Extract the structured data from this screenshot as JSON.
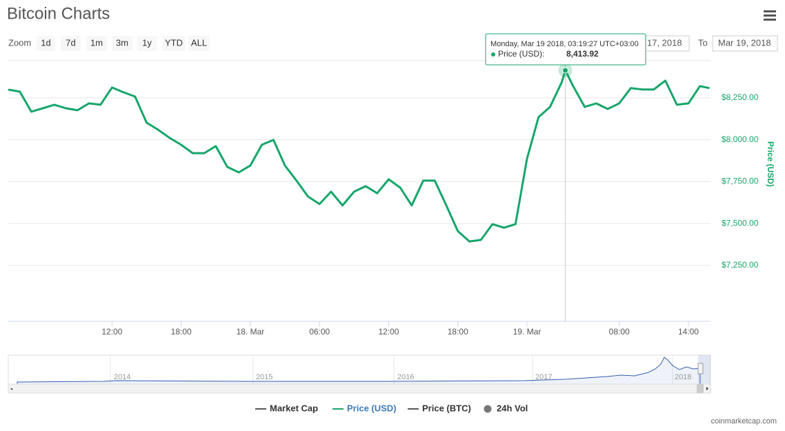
{
  "ui": {
    "title": "Bitcoin Charts",
    "zoom_label": "Zoom",
    "zoom_buttons": [
      "1d",
      "7d",
      "1m",
      "3m",
      "1y",
      "YTD",
      "ALL"
    ],
    "from_value": "17, 2018",
    "to_label": "To",
    "to_value": "Mar 19, 2018",
    "legend_others": [
      {
        "name": "Market Cap",
        "color": "#555555"
      },
      {
        "name": "Price (BTC)",
        "color": "#555555"
      },
      {
        "name": "24h Vol",
        "color": "#777777"
      }
    ],
    "footer": "coinmarketcap.com",
    "navigator_labels": [
      "2014",
      "2015",
      "2016",
      "2017",
      "2018"
    ]
  },
  "chart_data": {
    "type": "line",
    "ylabel": "Price (USD)",
    "x": [
      "2018-03-17T03:00",
      "2018-03-17T04:00",
      "2018-03-17T05:00",
      "2018-03-17T06:00",
      "2018-03-17T07:00",
      "2018-03-17T08:00",
      "2018-03-17T09:00",
      "2018-03-17T10:00",
      "2018-03-17T11:00",
      "2018-03-17T12:00",
      "2018-03-17T13:00",
      "2018-03-17T14:00",
      "2018-03-17T15:00",
      "2018-03-17T16:00",
      "2018-03-17T17:00",
      "2018-03-17T18:00",
      "2018-03-17T19:00",
      "2018-03-17T20:00",
      "2018-03-17T21:00",
      "2018-03-17T22:00",
      "2018-03-17T23:00",
      "2018-03-18T00:00",
      "2018-03-18T01:00",
      "2018-03-18T02:00",
      "2018-03-18T03:00",
      "2018-03-18T04:00",
      "2018-03-18T05:00",
      "2018-03-18T06:00",
      "2018-03-18T07:00",
      "2018-03-18T08:00",
      "2018-03-18T09:00",
      "2018-03-18T10:00",
      "2018-03-18T11:00",
      "2018-03-18T12:00",
      "2018-03-18T13:00",
      "2018-03-18T14:00",
      "2018-03-18T15:00",
      "2018-03-18T16:00",
      "2018-03-18T17:00",
      "2018-03-18T18:00",
      "2018-03-18T19:00",
      "2018-03-18T20:00",
      "2018-03-18T21:00",
      "2018-03-18T22:00",
      "2018-03-18T23:00",
      "2018-03-19T00:00",
      "2018-03-19T01:00",
      "2018-03-19T02:00",
      "2018-03-19T03:00",
      "2018-03-19T03:19:27",
      "2018-03-19T04:00",
      "2018-03-19T05:00",
      "2018-03-19T06:00",
      "2018-03-19T07:00",
      "2018-03-19T08:00",
      "2018-03-19T09:00",
      "2018-03-19T10:00",
      "2018-03-19T11:00",
      "2018-03-19T12:00",
      "2018-03-19T13:00",
      "2018-03-19T14:00",
      "2018-03-19T15:00",
      "2018-03-19T15:50"
    ],
    "series": [
      {
        "name": "Price (USD)",
        "color": "#16a56a",
        "values": [
          8299,
          8287,
          8168,
          8188,
          8209,
          8188,
          8176,
          8217,
          8209,
          8312,
          8283,
          8258,
          8102,
          8060,
          8011,
          7970,
          7920,
          7920,
          7962,
          7838,
          7805,
          7846,
          7970,
          7999,
          7846,
          7756,
          7661,
          7616,
          7690,
          7608,
          7690,
          7723,
          7681,
          7764,
          7714,
          7608,
          7756,
          7756,
          7608,
          7455,
          7393,
          7402,
          7496,
          7475,
          7496,
          7887,
          8135,
          8196,
          8341,
          8413.92,
          8320,
          8196,
          8217,
          8184,
          8217,
          8308,
          8300,
          8300,
          8353,
          8209,
          8217,
          8320,
          8308
        ]
      }
    ],
    "xlim": [
      "2018-03-17T03:00",
      "2018-03-19T15:55"
    ],
    "xticks": [
      {
        "value": "2018-03-17T12:00",
        "label": "12:00"
      },
      {
        "value": "2018-03-17T18:00",
        "label": "18:00"
      },
      {
        "value": "2018-03-18T00:00",
        "label": "18. Mar"
      },
      {
        "value": "2018-03-18T06:00",
        "label": "06:00"
      },
      {
        "value": "2018-03-18T12:00",
        "label": "12:00"
      },
      {
        "value": "2018-03-18T18:00",
        "label": "18:00"
      },
      {
        "value": "2018-03-19T00:00",
        "label": "19. Mar"
      },
      {
        "value": "2018-03-19T08:00",
        "label": "08:00"
      },
      {
        "value": "2018-03-19T14:00",
        "label": "14:00"
      }
    ],
    "ylim": [
      6916,
      8472
    ],
    "yticks": [
      {
        "value": 7250,
        "label": "$7,250.00"
      },
      {
        "value": 7500,
        "label": "$7,500.00"
      },
      {
        "value": 7750,
        "label": "$7,750.00"
      },
      {
        "value": 8000,
        "label": "$8,000.00"
      },
      {
        "value": 8250,
        "label": "$8,250.00"
      }
    ],
    "grid": true,
    "tooltip": {
      "x": "2018-03-19T03:19:27",
      "date": "Monday, Mar 19 2018, 03:19:27 UTC+03:00",
      "series_label": "Price (USD):",
      "value_label": "8,413.92"
    }
  }
}
